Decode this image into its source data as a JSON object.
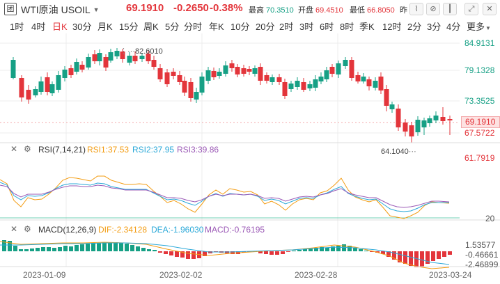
{
  "header": {
    "logo": "团",
    "symbol_name": "WTI原油",
    "symbol_code": "USOIL",
    "last": "69.1910",
    "change": "-0.2650",
    "change_pct": "-0.38%",
    "high_label": "最高",
    "high_value": "70.3510",
    "open_label": "开盘",
    "open_value": "69.4510",
    "low_label": "最低",
    "low_value": "66.8050",
    "prev_label": "昨"
  },
  "periods": [
    "1时",
    "4时",
    "日K",
    "30分",
    "月K",
    "15分",
    "周K",
    "5分",
    "分时",
    "年K",
    "10分",
    "20分",
    "2时",
    "3时",
    "6时",
    "8时",
    "季K",
    "12时",
    "2分",
    "3分",
    "4分",
    "更多"
  ],
  "active_period": "日K",
  "price_axis": [
    "84.9131",
    "79.1328",
    "73.3525",
    "67.5722",
    "61.7919"
  ],
  "current_price_tag": "69.1910",
  "annotations": {
    "high": "82.6010",
    "low": "64.1040"
  },
  "rsi": {
    "title": "RSI(7,14,21)",
    "rsi1_label": "RSI1:37.53",
    "rsi2_label": "RSI2:37.95",
    "rsi3_label": "RSI3:39.86",
    "axis_value": "20"
  },
  "macd": {
    "title": "MACD(12,26,9)",
    "dif_label": "DIF:-2.34128",
    "dea_label": "DEA:-1.96030",
    "macd_label": "MACD:-0.76195",
    "axis": [
      "1.53577",
      "-0.46661",
      "-2.46899"
    ]
  },
  "dates": [
    "2023-01-09",
    "2023-02-02",
    "2023-02-28",
    "2023-03-24"
  ],
  "colors": {
    "up": "#16a085",
    "down": "#e3353b",
    "rsi1": "#f39c12",
    "rsi2": "#2aa8d8",
    "rsi3": "#9b59b6"
  }
}
